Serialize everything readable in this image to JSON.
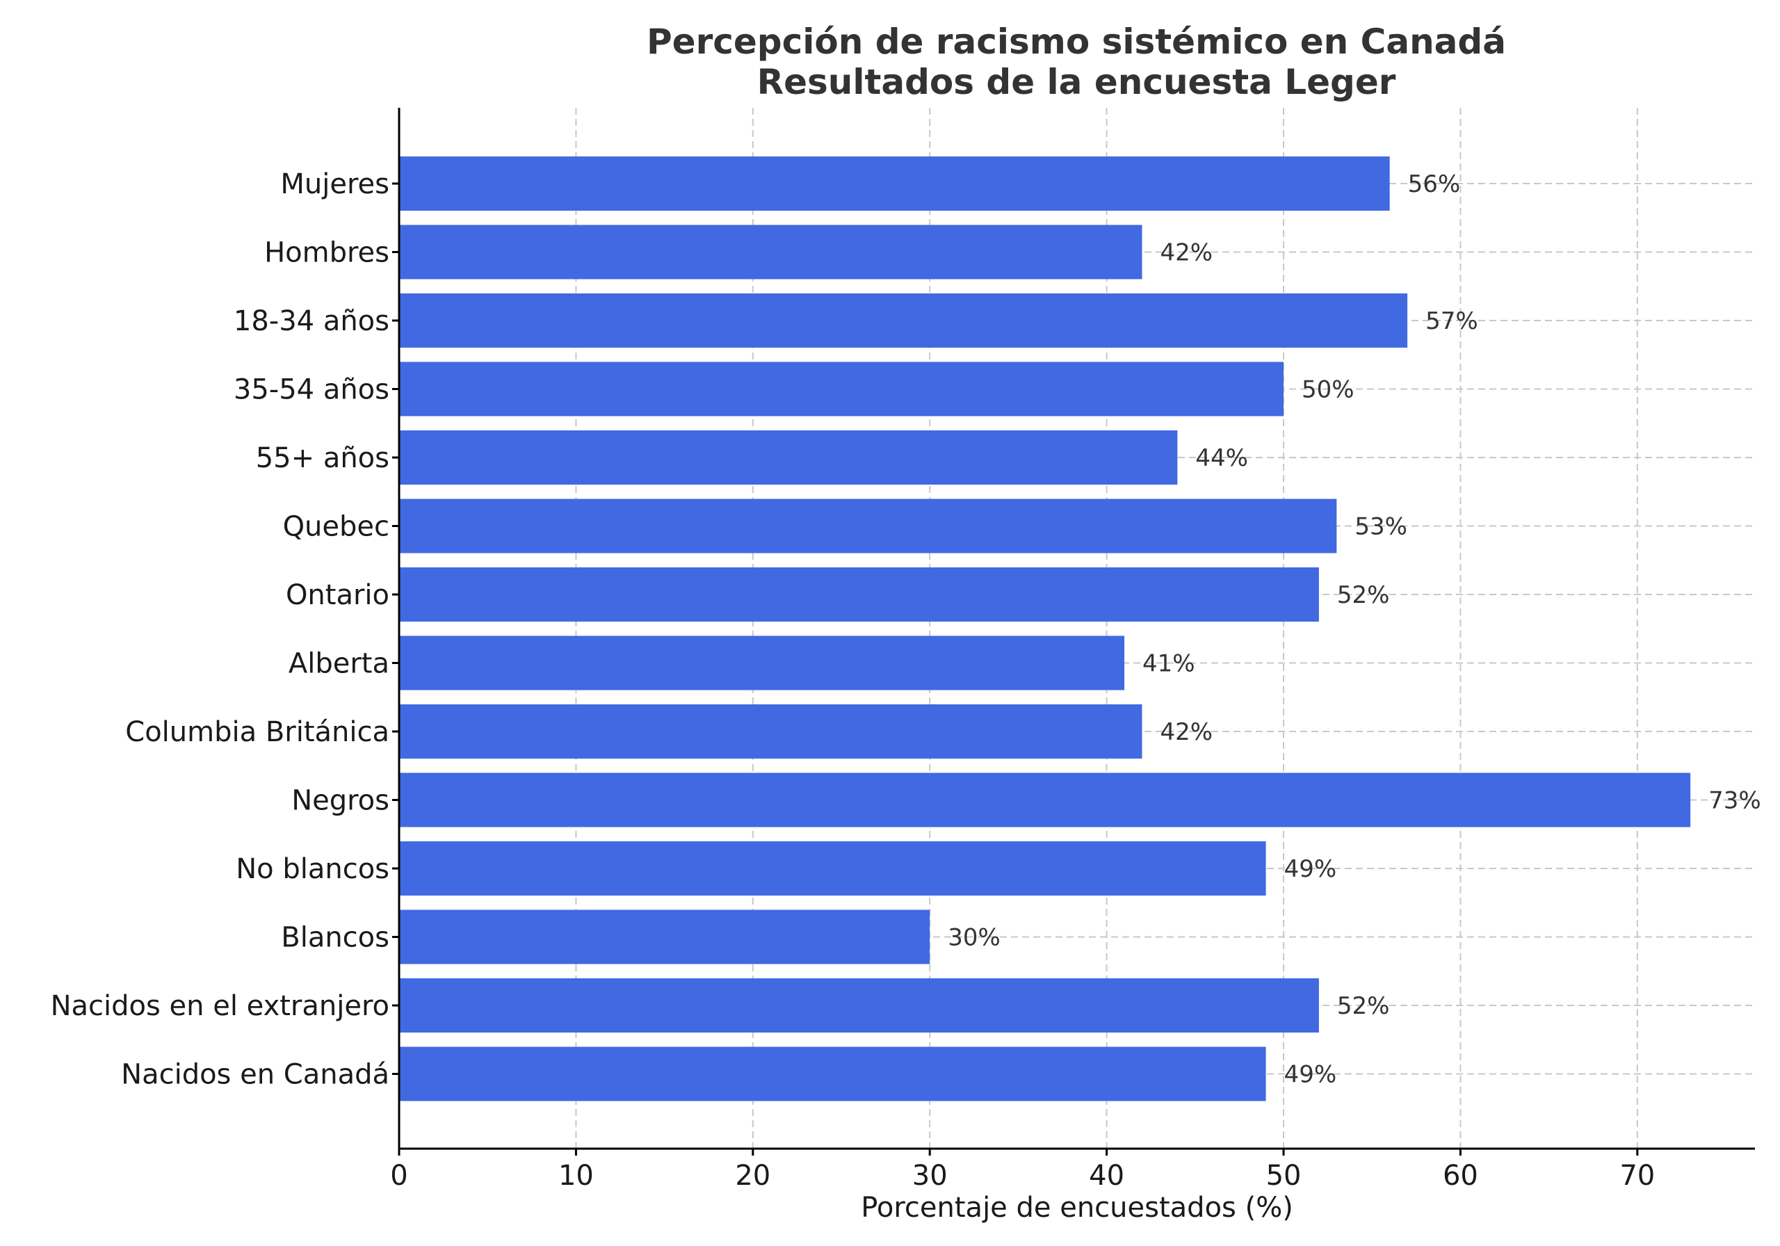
{
  "chart_data": {
    "type": "bar",
    "orientation": "horizontal",
    "title_lines": [
      "Percepción de racismo sistémico en Canadá",
      "Resultados de la encuesta Leger"
    ],
    "xlabel": "Porcentaje de encuestados (%)",
    "ylabel": "",
    "xlim": [
      0,
      76.65
    ],
    "xticks": [
      0,
      10,
      20,
      30,
      40,
      50,
      60,
      70
    ],
    "grid": true,
    "bar_color": "#4169e1",
    "value_suffix": "%",
    "categories": [
      "Mujeres",
      "Hombres",
      "18-34 años",
      "35-54 años",
      "55+ años",
      "Quebec",
      "Ontario",
      "Alberta",
      "Columbia Británica",
      "Negros",
      "No blancos",
      "Blancos",
      "Nacidos en el extranjero",
      "Nacidos en Canadá"
    ],
    "values": [
      56,
      42,
      57,
      50,
      44,
      53,
      52,
      41,
      42,
      73,
      49,
      30,
      52,
      49
    ],
    "data_labels": [
      "56%",
      "42%",
      "57%",
      "50%",
      "44%",
      "53%",
      "52%",
      "41%",
      "42%",
      "73%",
      "49%",
      "30%",
      "52%",
      "49%"
    ]
  }
}
